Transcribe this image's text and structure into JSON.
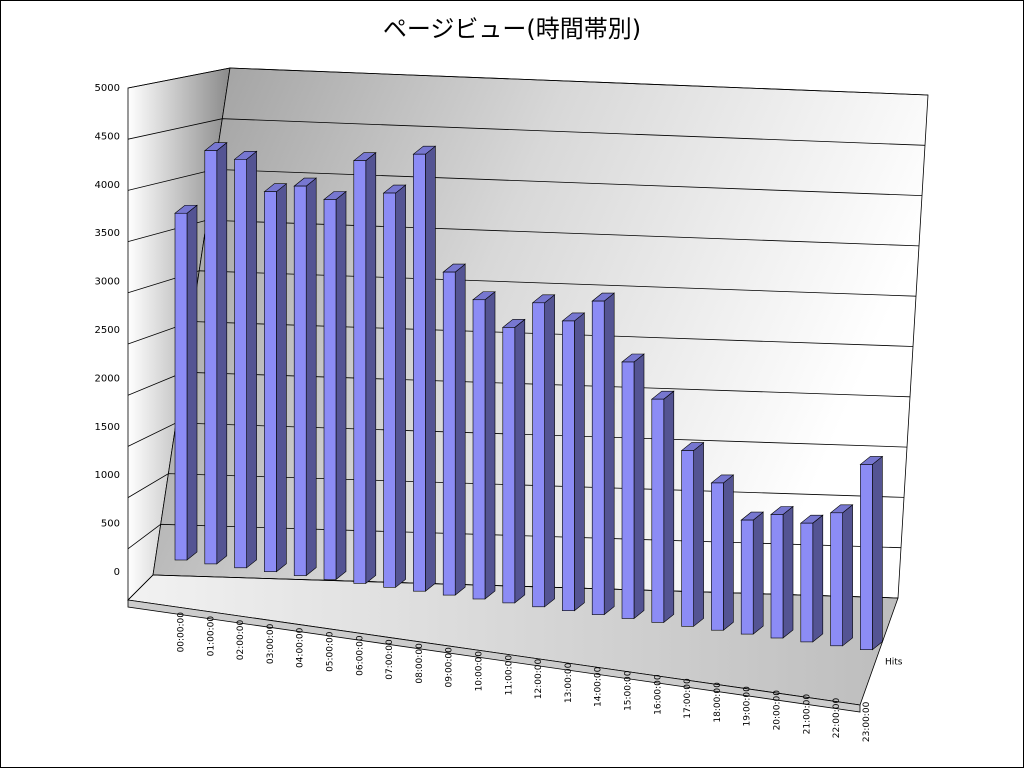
{
  "chart_data": {
    "type": "bar",
    "title": "ページビュー(時間帯別)",
    "categories": [
      "00:00:00",
      "01:00:00",
      "02:00:00",
      "03:00:00",
      "04:00:00",
      "05:00:00",
      "06:00:00",
      "07:00:00",
      "08:00:00",
      "09:00:00",
      "10:00:00",
      "11:00:00",
      "12:00:00",
      "13:00:00",
      "14:00:00",
      "15:00:00",
      "16:00:00",
      "17:00:00",
      "18:00:00",
      "19:00:00",
      "20:00:00",
      "21:00:00",
      "22:00:00",
      "23:00:00"
    ],
    "series": [
      {
        "name": "Hits",
        "color": "#8c8cf5",
        "values": [
          3650,
          4350,
          4300,
          4000,
          4100,
          4000,
          4450,
          4150,
          4600,
          3400,
          3150,
          2900,
          3200,
          3050,
          3300,
          2700,
          2350,
          1850,
          1550,
          1200,
          1300,
          1250,
          1400,
          1950
        ]
      }
    ],
    "ylim": [
      0,
      5000
    ],
    "yticks": [
      0,
      500,
      1000,
      1500,
      2000,
      2500,
      3000,
      3500,
      4000,
      4500,
      5000
    ],
    "grid": true
  }
}
